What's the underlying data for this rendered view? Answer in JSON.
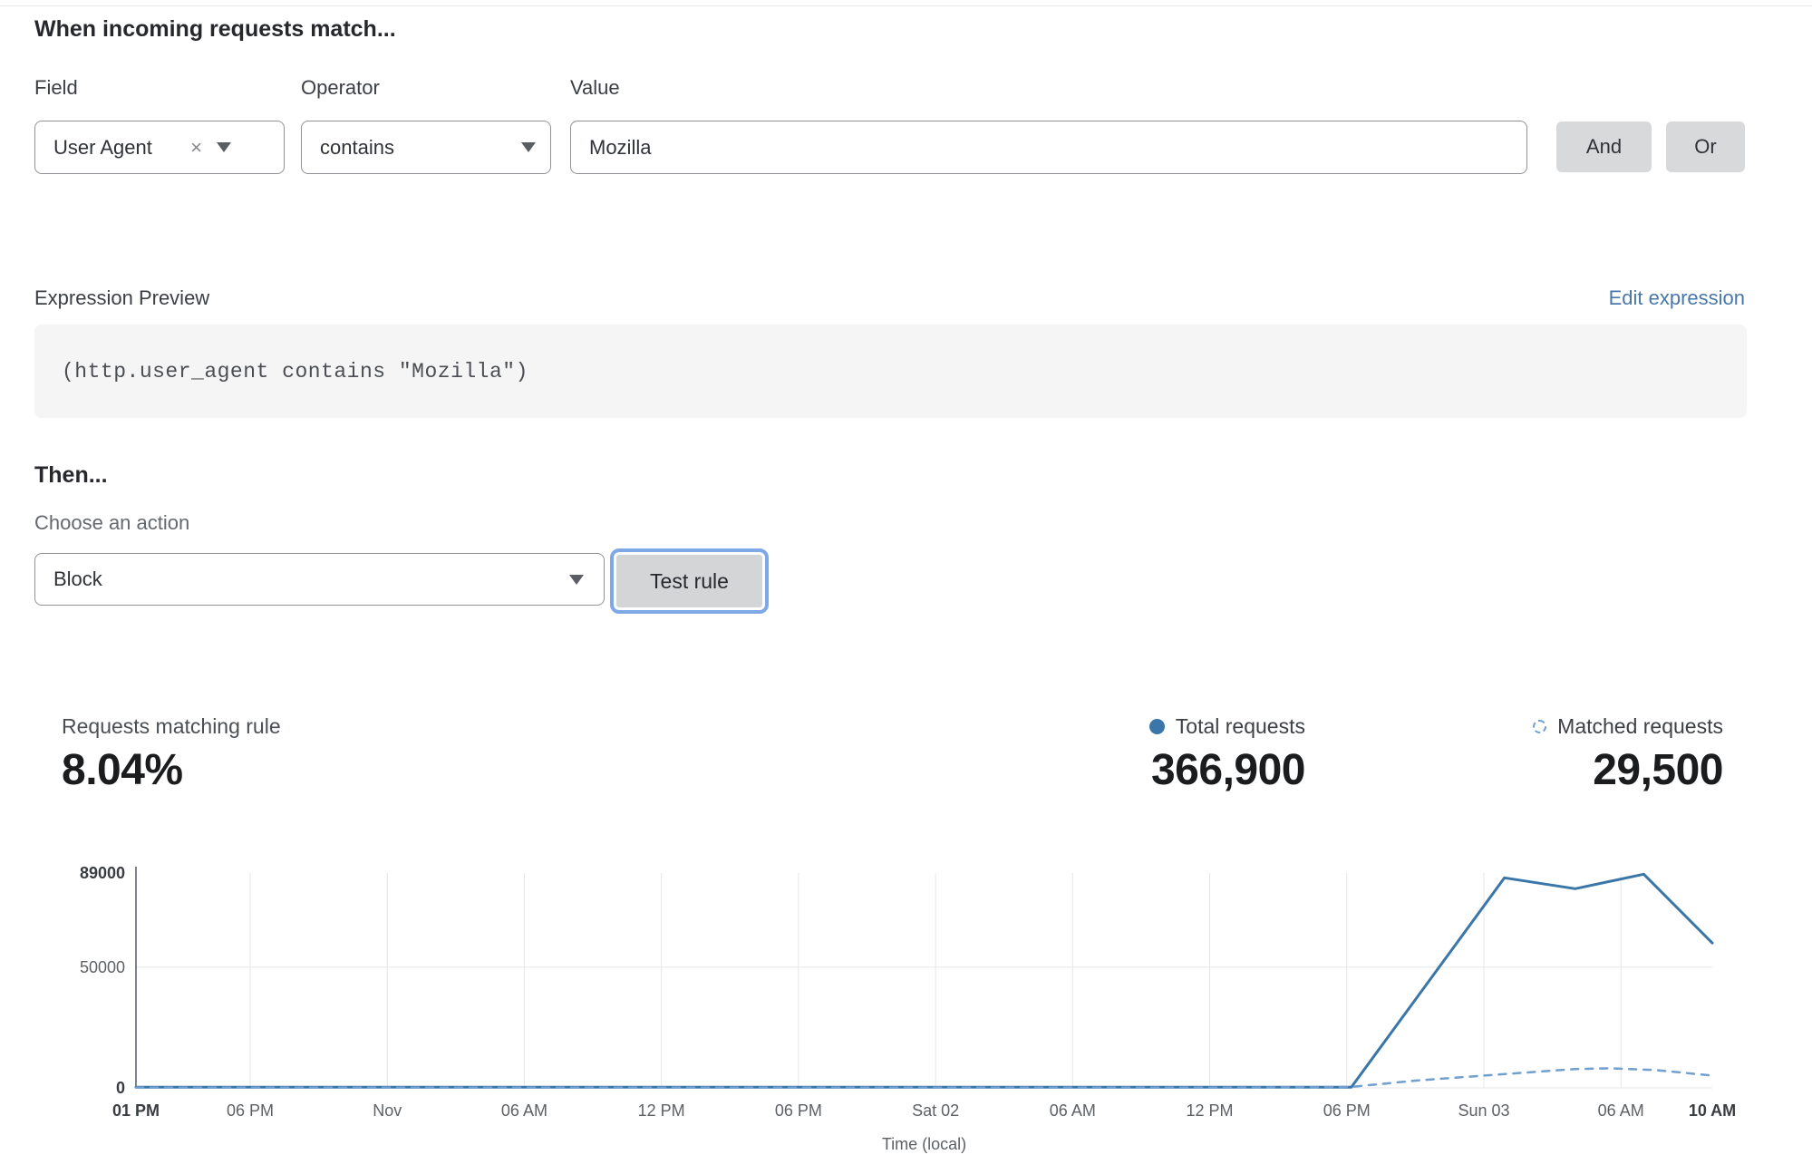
{
  "rule_builder": {
    "title": "When incoming requests match...",
    "field": {
      "label": "Field",
      "value": "User Agent",
      "clear_icon": "×"
    },
    "operator": {
      "label": "Operator",
      "value": "contains"
    },
    "value": {
      "label": "Value",
      "value": "Mozilla"
    },
    "and_label": "And",
    "or_label": "Or"
  },
  "expression": {
    "label": "Expression Preview",
    "edit_link": "Edit expression",
    "code": "(http.user_agent contains \"Mozilla\")"
  },
  "then_section": {
    "title": "Then...",
    "choose_label": "Choose an action",
    "action_value": "Block",
    "test_button": "Test rule"
  },
  "stats": {
    "match_label": "Requests matching rule",
    "match_value": "8.04%",
    "total_label": "Total requests",
    "total_value": "366,900",
    "matched_label": "Matched requests",
    "matched_value": "29,500"
  },
  "colors": {
    "link_blue": "#4878ab",
    "focus_ring_blue": "#7fa9e6",
    "total_line_blue": "#3a76a8",
    "matched_line_blue": "#6fa0cf",
    "grid_gray": "#e5e6e8"
  },
  "chart_data": {
    "type": "line",
    "xlabel": "Time (local)",
    "ylabel": "",
    "ylim": [
      0,
      89000
    ],
    "grid": true,
    "legend_position": "top-right",
    "x_hours_range": [
      0,
      69
    ],
    "yticks": [
      {
        "value": 0,
        "label": "0",
        "bold": true
      },
      {
        "value": 50000,
        "label": "50000",
        "bold": false
      },
      {
        "value": 89000,
        "label": "89000",
        "bold": true
      }
    ],
    "xticks": [
      {
        "hour": 0,
        "label": "01 PM",
        "bold": true
      },
      {
        "hour": 5,
        "label": "06 PM",
        "bold": false
      },
      {
        "hour": 11,
        "label": "Nov",
        "bold": false
      },
      {
        "hour": 17,
        "label": "06 AM",
        "bold": false
      },
      {
        "hour": 23,
        "label": "12 PM",
        "bold": false
      },
      {
        "hour": 29,
        "label": "06 PM",
        "bold": false
      },
      {
        "hour": 35,
        "label": "Sat 02",
        "bold": false
      },
      {
        "hour": 41,
        "label": "06 AM",
        "bold": false
      },
      {
        "hour": 47,
        "label": "12 PM",
        "bold": false
      },
      {
        "hour": 53,
        "label": "06 PM",
        "bold": false
      },
      {
        "hour": 59,
        "label": "Sun 03",
        "bold": false
      },
      {
        "hour": 65,
        "label": "06 AM",
        "bold": false
      },
      {
        "hour": 69,
        "label": "10 AM",
        "bold": true
      }
    ],
    "series": [
      {
        "name": "Total requests",
        "style": "solid",
        "color": "#3a76a8",
        "points": [
          [
            0,
            250
          ],
          [
            6,
            250
          ],
          [
            12,
            250
          ],
          [
            18,
            250
          ],
          [
            24,
            250
          ],
          [
            30,
            250
          ],
          [
            36,
            250
          ],
          [
            42,
            250
          ],
          [
            48,
            250
          ],
          [
            53.2,
            300
          ],
          [
            56.5,
            43000
          ],
          [
            59.9,
            87000
          ],
          [
            63,
            82500
          ],
          [
            66,
            88500
          ],
          [
            69,
            60000
          ]
        ]
      },
      {
        "name": "Matched requests",
        "style": "dashed",
        "color": "#6fa0cf",
        "points": [
          [
            0,
            150
          ],
          [
            6,
            150
          ],
          [
            12,
            150
          ],
          [
            18,
            150
          ],
          [
            24,
            150
          ],
          [
            30,
            150
          ],
          [
            36,
            150
          ],
          [
            42,
            150
          ],
          [
            48,
            150
          ],
          [
            53.2,
            400
          ],
          [
            56,
            3000
          ],
          [
            60,
            5800
          ],
          [
            63,
            7800
          ],
          [
            64.5,
            8100
          ],
          [
            66.5,
            7400
          ],
          [
            69,
            5100
          ]
        ]
      }
    ]
  }
}
